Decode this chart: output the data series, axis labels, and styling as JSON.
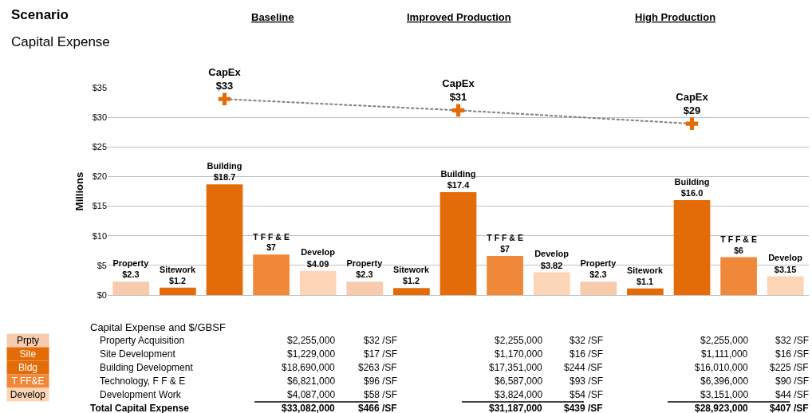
{
  "chart_data": {
    "type": "bar",
    "title": "Scenario",
    "subtitle": "Capital Expense",
    "ylabel": "Millions",
    "categories": [
      null,
      null,
      null,
      null,
      null,
      null,
      null,
      null,
      null,
      null,
      null,
      null,
      null,
      null,
      null
    ],
    "series": [
      {
        "colors": [
          "#f8cbad",
          "#e36c09",
          "#e36c09",
          "#f0883a",
          "#fbd5b5",
          "#f8cbad",
          "#e36c09",
          "#e36c09",
          "#f0883a",
          "#fbd5b5",
          "#f8cbad",
          "#e36c09",
          "#e36c09",
          "#f0883a",
          "#fbd5b5"
        ],
        "values": [
          2.255,
          1.229,
          18.69,
          6.821,
          4.087,
          2.255,
          1.17,
          17.351,
          6.587,
          3.824,
          2.255,
          1.111,
          16.01,
          6.396,
          3.151
        ],
        "value_labels": [
          "Property\n$2.3",
          "Sitework\n$1.2",
          "Building\n$18.7",
          "T F F & E\n$7",
          "Develop\n$4.09",
          "Property\n$2.3",
          "Sitework\n$1.2",
          "Building\n$17.4",
          "T F F & E\n$7",
          "Develop\n$3.82",
          "Property\n$2.3",
          "Sitework\n$1.1",
          "Building\n$16.0",
          "T F F & E\n$6",
          "Develop\n$3.15"
        ]
      },
      {
        "type": "line",
        "color": "#808080",
        "marker": "none",
        "line_style": "dashed",
        "values": [
          null,
          null,
          33.082,
          null,
          null,
          null,
          null,
          31.187,
          null,
          null,
          null,
          null,
          28.923,
          null,
          null
        ]
      },
      {
        "type": "scatter",
        "color": "#e36c09",
        "marker": "cross",
        "values": [
          null,
          null,
          33.082,
          null,
          null,
          null,
          null,
          31.187,
          null,
          null,
          null,
          null,
          28.923,
          null,
          null
        ],
        "value_labels": [
          null,
          null,
          "CapEx\n$33",
          null,
          null,
          null,
          null,
          "CapEx\n$31",
          null,
          null,
          null,
          null,
          "CapEx\n$29",
          null,
          null
        ]
      }
    ],
    "ylim": [
      0,
      35
    ],
    "yticks": [
      {
        "value": 0,
        "label": "$0"
      },
      {
        "value": 5,
        "label": "$5"
      },
      {
        "value": 10,
        "label": "$10"
      },
      {
        "value": 15,
        "label": "$15"
      },
      {
        "value": 20,
        "label": "$20"
      },
      {
        "value": 25,
        "label": "$25"
      },
      {
        "value": 30,
        "label": "$30"
      },
      {
        "value": 35,
        "label": "$35"
      }
    ],
    "grid": "y",
    "tick_labels": "y",
    "annotations": [
      "Baseline",
      "Improved Production",
      "High Production",
      "Capital Expense and $/GBSF",
      "Prpty",
      "Site",
      "Bldg",
      "T FF&E",
      "Develop",
      "Property Acquisition",
      "Site Development",
      "Building Development",
      "Technology, F F & E",
      "Development Work",
      "Total Capital Expense",
      "$2,255,000",
      "$32 /SF",
      "$1,229,000",
      "$17 /SF",
      "$18,690,000",
      "$263 /SF",
      "$6,821,000",
      "$96 /SF",
      "$4,087,000",
      "$58 /SF",
      "$33,082,000",
      "$466 /SF",
      "$2,255,000",
      "$32 /SF",
      "$1,170,000",
      "$16 /SF",
      "$17,351,000",
      "$244 /SF",
      "$6,587,000",
      "$93 /SF",
      "$3,824,000",
      "$54 /SF",
      "$31,187,000",
      "$439 /SF",
      "$2,255,000",
      "$32 /SF",
      "$1,111,000",
      "$16 /SF",
      "$16,010,000",
      "$225 /SF",
      "$6,396,000",
      "$90 /SF",
      "$3,151,000",
      "$44 /SF",
      "$28,923,000",
      "$407 /SF"
    ]
  }
}
